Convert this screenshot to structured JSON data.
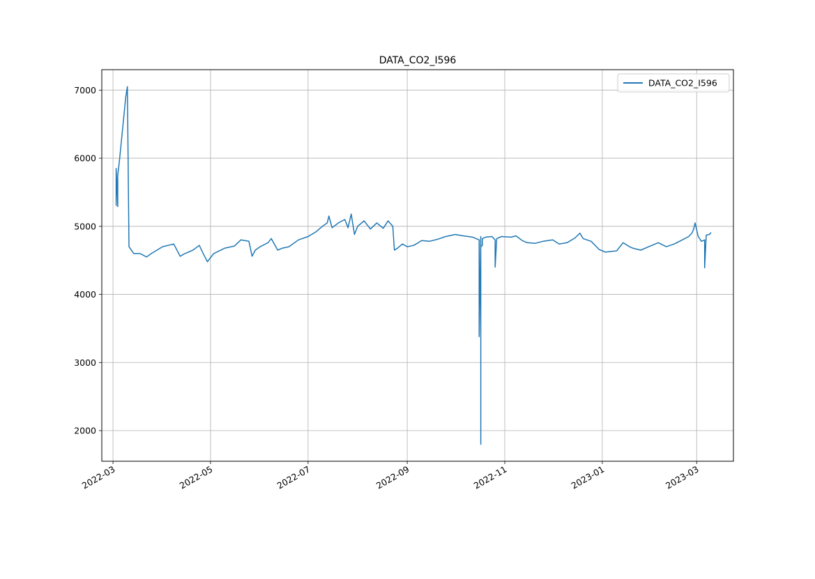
{
  "chart_data": {
    "type": "line",
    "title": "DATA_CO2_I596",
    "xlabel": "",
    "ylabel": "",
    "x_axis": "date",
    "xlim": [
      "2022-02-22",
      "2023-03-24"
    ],
    "ylim": [
      1550,
      7300
    ],
    "x_ticks": [
      "2022-03",
      "2022-05",
      "2022-07",
      "2022-09",
      "2022-11",
      "2023-01",
      "2023-03"
    ],
    "y_ticks": [
      2000,
      3000,
      4000,
      5000,
      6000,
      7000
    ],
    "grid": true,
    "legend_position": "top-right",
    "colors": {
      "series": "#1f77b4",
      "grid": "#b0b0b0"
    },
    "series": [
      {
        "name": "DATA_CO2_I596",
        "x": [
          "2022-03-03",
          "2022-03-03",
          "2022-03-04",
          "2022-03-04",
          "2022-03-05",
          "2022-03-09",
          "2022-03-10",
          "2022-03-11",
          "2022-03-14",
          "2022-03-18",
          "2022-03-22",
          "2022-03-25",
          "2022-04-01",
          "2022-04-08",
          "2022-04-12",
          "2022-04-15",
          "2022-04-20",
          "2022-04-24",
          "2022-04-26",
          "2022-04-29",
          "2022-05-03",
          "2022-05-10",
          "2022-05-16",
          "2022-05-20",
          "2022-05-25",
          "2022-05-27",
          "2022-05-29",
          "2022-06-01",
          "2022-06-06",
          "2022-06-08",
          "2022-06-12",
          "2022-06-15",
          "2022-06-19",
          "2022-06-25",
          "2022-07-01",
          "2022-07-06",
          "2022-07-10",
          "2022-07-13",
          "2022-07-14",
          "2022-07-16",
          "2022-07-20",
          "2022-07-24",
          "2022-07-26",
          "2022-07-28",
          "2022-07-30",
          "2022-08-01",
          "2022-08-05",
          "2022-08-09",
          "2022-08-13",
          "2022-08-17",
          "2022-08-20",
          "2022-08-23",
          "2022-08-24",
          "2022-08-26",
          "2022-08-29",
          "2022-09-01",
          "2022-09-05",
          "2022-09-08",
          "2022-09-10",
          "2022-09-15",
          "2022-09-20",
          "2022-09-25",
          "2022-10-01",
          "2022-10-06",
          "2022-10-12",
          "2022-10-16",
          "2022-10-16",
          "2022-10-17",
          "2022-10-17",
          "2022-10-17",
          "2022-10-18",
          "2022-10-18",
          "2022-10-20",
          "2022-10-24",
          "2022-10-26",
          "2022-10-26",
          "2022-10-27",
          "2022-10-30",
          "2022-11-05",
          "2022-11-08",
          "2022-11-12",
          "2022-11-15",
          "2022-11-20",
          "2022-11-25",
          "2022-12-01",
          "2022-12-05",
          "2022-12-10",
          "2022-12-15",
          "2022-12-18",
          "2022-12-20",
          "2022-12-25",
          "2022-12-30",
          "2023-01-03",
          "2023-01-06",
          "2023-01-10",
          "2023-01-14",
          "2023-01-18",
          "2023-01-20",
          "2023-01-25",
          "2023-02-01",
          "2023-02-05",
          "2023-02-10",
          "2023-02-15",
          "2023-02-20",
          "2023-02-24",
          "2023-02-26",
          "2023-02-27",
          "2023-02-28",
          "2023-03-02",
          "2023-03-04",
          "2023-03-06",
          "2023-03-06",
          "2023-03-07",
          "2023-03-09",
          "2023-03-10"
        ],
        "y": [
          5300,
          5850,
          5290,
          5750,
          5950,
          6900,
          7050,
          4700,
          4600,
          4600,
          4550,
          4600,
          4700,
          4740,
          4560,
          4600,
          4650,
          4720,
          4620,
          4480,
          4600,
          4680,
          4710,
          4800,
          4780,
          4560,
          4650,
          4700,
          4760,
          4820,
          4650,
          4680,
          4700,
          4800,
          4850,
          4920,
          5000,
          5050,
          5150,
          4980,
          5050,
          5100,
          4980,
          5180,
          4880,
          5000,
          5080,
          4960,
          5050,
          4970,
          5080,
          5000,
          4650,
          4680,
          4740,
          4700,
          4720,
          4760,
          4790,
          4780,
          4810,
          4850,
          4880,
          4860,
          4840,
          4800,
          3380,
          4850,
          1800,
          4700,
          4720,
          4820,
          4840,
          4850,
          4800,
          4400,
          4820,
          4850,
          4840,
          4860,
          4790,
          4760,
          4750,
          4780,
          4800,
          4740,
          4760,
          4830,
          4900,
          4820,
          4780,
          4660,
          4620,
          4630,
          4640,
          4760,
          4700,
          4680,
          4650,
          4720,
          4760,
          4700,
          4740,
          4800,
          4850,
          4900,
          4950,
          5050,
          4850,
          4780,
          4800,
          4390,
          4870,
          4880,
          4910
        ]
      }
    ]
  }
}
